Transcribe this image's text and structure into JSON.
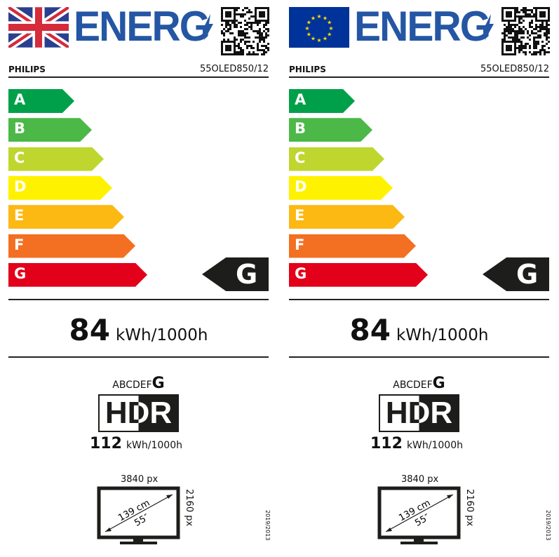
{
  "labels": [
    {
      "region_flag": "uk-flag",
      "energy_title": "ENERG",
      "supplier": "PHILIPS",
      "model": "55OLED850/12",
      "classes": [
        "A",
        "B",
        "C",
        "D",
        "E",
        "F",
        "G"
      ],
      "rating": "G",
      "sdr_consumption": "84",
      "unit": "kWh/1000h",
      "hdr_scale": "ABCDEF",
      "hdr_rating": "G",
      "hdr_label": "HDR",
      "hdr_consumption": "112",
      "h_res": "3840 px",
      "v_res": "2160 px",
      "diag_cm": "139 cm",
      "diag_in": "55″",
      "regulation": "2019/2013"
    },
    {
      "region_flag": "eu-flag",
      "energy_title": "ENERG",
      "supplier": "PHILIPS",
      "model": "55OLED850/12",
      "classes": [
        "A",
        "B",
        "C",
        "D",
        "E",
        "F",
        "G"
      ],
      "rating": "G",
      "sdr_consumption": "84",
      "unit": "kWh/1000h",
      "hdr_scale": "ABCDEF",
      "hdr_rating": "G",
      "hdr_label": "HDR",
      "hdr_consumption": "112",
      "h_res": "3840 px",
      "v_res": "2160 px",
      "diag_cm": "139 cm",
      "diag_in": "55″",
      "regulation": "2019/2013"
    }
  ],
  "colors": {
    "energ_blue": "#2456a4",
    "A": "#00a04a",
    "B": "#4cb848",
    "C": "#bfd62f",
    "D": "#fff200",
    "E": "#fcb813",
    "F": "#f36f21",
    "G": "#e2001a",
    "eu_blue": "#003399",
    "eu_star": "#ffdd00"
  }
}
